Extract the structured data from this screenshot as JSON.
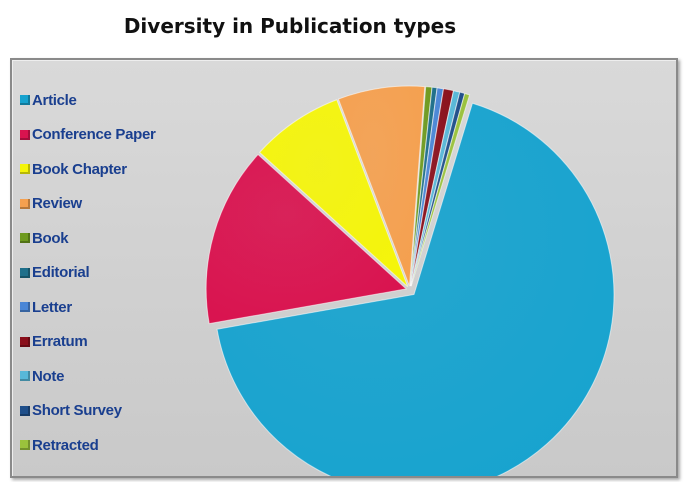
{
  "chart_data": {
    "type": "pie",
    "title": "Diversity in Publication types",
    "legend_position": "left",
    "categories": [
      "Article",
      "Conference Paper",
      "Book Chapter",
      "Review",
      "Book",
      "Editorial",
      "Letter",
      "Erratum",
      "Note",
      "Short Survey",
      "Retracted"
    ],
    "values": [
      67.5,
      14.5,
      7.5,
      7.0,
      0.5,
      0.4,
      0.5,
      0.8,
      0.5,
      0.4,
      0.4
    ],
    "colors": [
      "#17a3cf",
      "#d9134f",
      "#f5f50a",
      "#f5a04f",
      "#6e9a1e",
      "#1e6f8a",
      "#4a86d6",
      "#8a0f1b",
      "#58b8d8",
      "#1f4f8a",
      "#9ac23c"
    ]
  }
}
